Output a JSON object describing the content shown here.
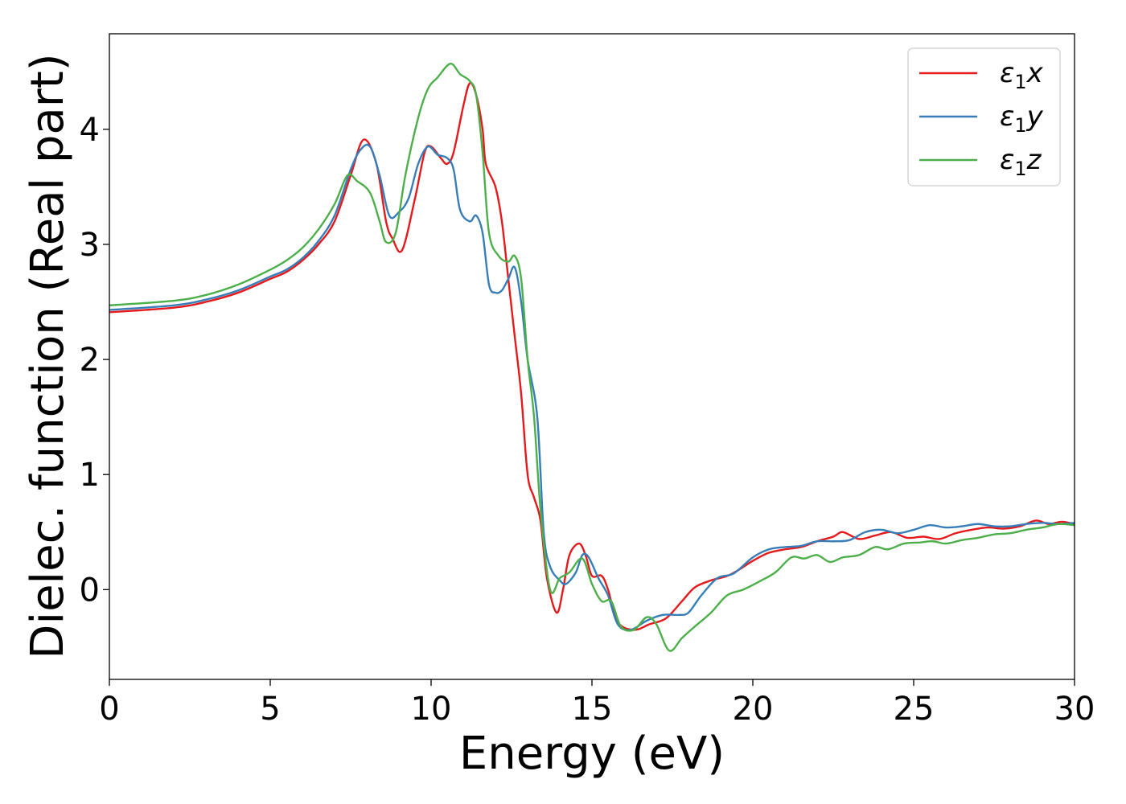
{
  "chart_data": {
    "type": "line",
    "title": "",
    "xlabel": "Energy (eV)",
    "ylabel": "Dielec. function (Real part)",
    "xlim": [
      0,
      30
    ],
    "ylim": [
      -0.78,
      4.83
    ],
    "xticks": [
      0,
      5,
      10,
      15,
      20,
      25,
      30
    ],
    "xtick_labels": [
      "0",
      "5",
      "10",
      "15",
      "20",
      "25",
      "30"
    ],
    "yticks": [
      0,
      1,
      2,
      3,
      4
    ],
    "ytick_labels": [
      "0",
      "1",
      "2",
      "3",
      "4"
    ],
    "grid": false,
    "legend_position": "top-right",
    "series": [
      {
        "name": "ε₁x",
        "legend_base": "ε",
        "legend_sub": "1",
        "legend_var": "x",
        "color": "#e41a1c",
        "points": [
          [
            0,
            2.41
          ],
          [
            2,
            2.45
          ],
          [
            3,
            2.5
          ],
          [
            4,
            2.58
          ],
          [
            5,
            2.7
          ],
          [
            5.5,
            2.76
          ],
          [
            6,
            2.86
          ],
          [
            6.5,
            3.0
          ],
          [
            7,
            3.2
          ],
          [
            7.5,
            3.6
          ],
          [
            7.9,
            3.91
          ],
          [
            8.3,
            3.7
          ],
          [
            8.6,
            3.2
          ],
          [
            8.8,
            3.05
          ],
          [
            9.1,
            2.95
          ],
          [
            9.5,
            3.4
          ],
          [
            9.8,
            3.8
          ],
          [
            10,
            3.85
          ],
          [
            10.3,
            3.75
          ],
          [
            10.5,
            3.7
          ],
          [
            10.7,
            3.8
          ],
          [
            11,
            4.2
          ],
          [
            11.2,
            4.4
          ],
          [
            11.4,
            4.3
          ],
          [
            11.6,
            4.0
          ],
          [
            11.7,
            3.7
          ],
          [
            12,
            3.5
          ],
          [
            12.2,
            3.2
          ],
          [
            12.4,
            2.7
          ],
          [
            12.6,
            2.2
          ],
          [
            12.8,
            1.7
          ],
          [
            13,
            1.0
          ],
          [
            13.2,
            0.8
          ],
          [
            13.4,
            0.6
          ],
          [
            13.6,
            0.1
          ],
          [
            13.9,
            -0.2
          ],
          [
            14.1,
            0.0
          ],
          [
            14.3,
            0.3
          ],
          [
            14.6,
            0.4
          ],
          [
            14.8,
            0.3
          ],
          [
            15,
            0.12
          ],
          [
            15.3,
            0.12
          ],
          [
            15.5,
            0.0
          ],
          [
            15.8,
            -0.28
          ],
          [
            16.3,
            -0.35
          ],
          [
            16.8,
            -0.3
          ],
          [
            17.3,
            -0.25
          ],
          [
            17.8,
            -0.1
          ],
          [
            18.2,
            0.02
          ],
          [
            18.7,
            0.08
          ],
          [
            19.3,
            0.13
          ],
          [
            20,
            0.25
          ],
          [
            20.5,
            0.32
          ],
          [
            21,
            0.35
          ],
          [
            21.5,
            0.37
          ],
          [
            22,
            0.42
          ],
          [
            22.5,
            0.46
          ],
          [
            22.8,
            0.5
          ],
          [
            23.3,
            0.44
          ],
          [
            23.8,
            0.47
          ],
          [
            24.3,
            0.5
          ],
          [
            24.8,
            0.45
          ],
          [
            25.3,
            0.46
          ],
          [
            25.8,
            0.44
          ],
          [
            26.3,
            0.49
          ],
          [
            26.8,
            0.52
          ],
          [
            27.3,
            0.54
          ],
          [
            27.8,
            0.53
          ],
          [
            28.3,
            0.55
          ],
          [
            28.8,
            0.6
          ],
          [
            29.2,
            0.57
          ],
          [
            29.6,
            0.59
          ],
          [
            30,
            0.57
          ]
        ]
      },
      {
        "name": "ε₁y",
        "legend_base": "ε",
        "legend_sub": "1",
        "legend_var": "y",
        "color": "#377eb8",
        "points": [
          [
            0,
            2.43
          ],
          [
            2,
            2.47
          ],
          [
            3,
            2.52
          ],
          [
            4,
            2.6
          ],
          [
            5,
            2.72
          ],
          [
            5.5,
            2.78
          ],
          [
            6,
            2.88
          ],
          [
            6.5,
            3.03
          ],
          [
            7,
            3.25
          ],
          [
            7.5,
            3.65
          ],
          [
            7.8,
            3.82
          ],
          [
            8.1,
            3.85
          ],
          [
            8.4,
            3.6
          ],
          [
            8.7,
            3.25
          ],
          [
            9,
            3.28
          ],
          [
            9.3,
            3.4
          ],
          [
            9.6,
            3.7
          ],
          [
            9.9,
            3.85
          ],
          [
            10.2,
            3.78
          ],
          [
            10.5,
            3.75
          ],
          [
            10.7,
            3.65
          ],
          [
            10.9,
            3.3
          ],
          [
            11.2,
            3.2
          ],
          [
            11.4,
            3.25
          ],
          [
            11.6,
            3.1
          ],
          [
            11.8,
            2.65
          ],
          [
            12,
            2.58
          ],
          [
            12.2,
            2.6
          ],
          [
            12.4,
            2.7
          ],
          [
            12.6,
            2.8
          ],
          [
            12.8,
            2.5
          ],
          [
            13,
            2.0
          ],
          [
            13.3,
            1.5
          ],
          [
            13.5,
            0.5
          ],
          [
            13.7,
            0.2
          ],
          [
            14,
            0.08
          ],
          [
            14.2,
            0.05
          ],
          [
            14.5,
            0.15
          ],
          [
            14.7,
            0.3
          ],
          [
            14.9,
            0.28
          ],
          [
            15.2,
            0.1
          ],
          [
            15.5,
            -0.05
          ],
          [
            15.8,
            -0.3
          ],
          [
            16.2,
            -0.35
          ],
          [
            16.7,
            -0.27
          ],
          [
            17.2,
            -0.22
          ],
          [
            17.7,
            -0.22
          ],
          [
            18,
            -0.2
          ],
          [
            18.4,
            -0.05
          ],
          [
            18.9,
            0.1
          ],
          [
            19.4,
            0.14
          ],
          [
            20,
            0.28
          ],
          [
            20.5,
            0.35
          ],
          [
            21,
            0.37
          ],
          [
            21.5,
            0.38
          ],
          [
            22,
            0.42
          ],
          [
            22.5,
            0.42
          ],
          [
            23,
            0.43
          ],
          [
            23.5,
            0.5
          ],
          [
            24,
            0.52
          ],
          [
            24.5,
            0.49
          ],
          [
            25,
            0.52
          ],
          [
            25.5,
            0.56
          ],
          [
            26,
            0.54
          ],
          [
            26.5,
            0.55
          ],
          [
            27,
            0.57
          ],
          [
            27.5,
            0.55
          ],
          [
            28,
            0.55
          ],
          [
            28.5,
            0.57
          ],
          [
            29,
            0.58
          ],
          [
            29.5,
            0.57
          ],
          [
            30,
            0.58
          ]
        ]
      },
      {
        "name": "ε₁z",
        "legend_base": "ε",
        "legend_sub": "1",
        "legend_var": "z",
        "color": "#4daf4a",
        "points": [
          [
            0,
            2.47
          ],
          [
            2,
            2.51
          ],
          [
            3,
            2.56
          ],
          [
            4,
            2.65
          ],
          [
            5,
            2.78
          ],
          [
            5.5,
            2.86
          ],
          [
            6,
            2.97
          ],
          [
            6.5,
            3.13
          ],
          [
            7,
            3.35
          ],
          [
            7.4,
            3.6
          ],
          [
            7.7,
            3.55
          ],
          [
            8.1,
            3.45
          ],
          [
            8.4,
            3.2
          ],
          [
            8.6,
            3.02
          ],
          [
            8.9,
            3.1
          ],
          [
            9.2,
            3.6
          ],
          [
            9.6,
            4.1
          ],
          [
            9.9,
            4.35
          ],
          [
            10.2,
            4.45
          ],
          [
            10.6,
            4.57
          ],
          [
            10.9,
            4.48
          ],
          [
            11.2,
            4.42
          ],
          [
            11.4,
            4.3
          ],
          [
            11.6,
            3.8
          ],
          [
            11.8,
            3.1
          ],
          [
            12.1,
            2.9
          ],
          [
            12.4,
            2.85
          ],
          [
            12.6,
            2.9
          ],
          [
            12.8,
            2.7
          ],
          [
            13,
            2.0
          ],
          [
            13.2,
            1.5
          ],
          [
            13.4,
            0.7
          ],
          [
            13.7,
            0.0
          ],
          [
            14,
            0.1
          ],
          [
            14.3,
            0.15
          ],
          [
            14.7,
            0.27
          ],
          [
            15,
            0.05
          ],
          [
            15.3,
            -0.1
          ],
          [
            15.6,
            -0.1
          ],
          [
            15.9,
            -0.32
          ],
          [
            16.3,
            -0.35
          ],
          [
            16.7,
            -0.24
          ],
          [
            17,
            -0.3
          ],
          [
            17.4,
            -0.53
          ],
          [
            17.8,
            -0.42
          ],
          [
            18.2,
            -0.32
          ],
          [
            18.7,
            -0.2
          ],
          [
            19.2,
            -0.05
          ],
          [
            19.7,
            0.0
          ],
          [
            20.2,
            0.07
          ],
          [
            20.7,
            0.15
          ],
          [
            21.2,
            0.28
          ],
          [
            21.6,
            0.27
          ],
          [
            22,
            0.3
          ],
          [
            22.4,
            0.24
          ],
          [
            22.8,
            0.28
          ],
          [
            23.3,
            0.3
          ],
          [
            23.8,
            0.37
          ],
          [
            24.2,
            0.35
          ],
          [
            24.7,
            0.4
          ],
          [
            25.2,
            0.41
          ],
          [
            25.6,
            0.42
          ],
          [
            26,
            0.4
          ],
          [
            26.5,
            0.43
          ],
          [
            27,
            0.45
          ],
          [
            27.5,
            0.48
          ],
          [
            28,
            0.49
          ],
          [
            28.5,
            0.52
          ],
          [
            29,
            0.54
          ],
          [
            29.5,
            0.57
          ],
          [
            30,
            0.56
          ]
        ]
      }
    ]
  }
}
